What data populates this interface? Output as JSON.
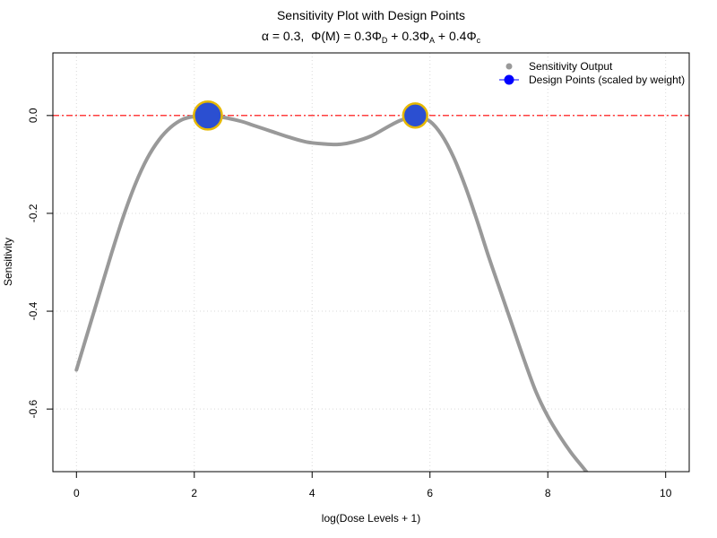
{
  "chart_data": {
    "type": "line",
    "title": "Sensitivity Plot with Design Points",
    "subtitle": {
      "alpha": "α = 0.3,",
      "phi_m": "Φ(M) = 0.3Φ",
      "sub_d": "D",
      "plus_a": " + 0.3Φ",
      "sub_a": "A",
      "plus_c": " + 0.4Φ",
      "sub_c": "c"
    },
    "xlabel": "log(Dose Levels + 1)",
    "ylabel": "Sensitivity",
    "xlim": [
      -0.4,
      10.4
    ],
    "ylim": [
      -0.728,
      0.128
    ],
    "xticks": [
      0,
      2,
      4,
      6,
      8,
      10
    ],
    "xtick_labels": [
      "0",
      "2",
      "4",
      "6",
      "8",
      "10"
    ],
    "yticks": [
      0.0,
      -0.2,
      -0.4,
      -0.6
    ],
    "ytick_labels": [
      "0.0",
      "-0.2",
      "-0.4",
      "-0.6"
    ],
    "grid": true,
    "legend_position": "top-right",
    "reference_line": {
      "y": 0,
      "color": "#ff0000",
      "style": "dashed"
    },
    "series": [
      {
        "name": "Sensitivity Output",
        "color": "#999999",
        "x": [
          0.0,
          0.2,
          0.4,
          0.6,
          0.8,
          1.0,
          1.2,
          1.4,
          1.6,
          1.8,
          2.0,
          2.2,
          2.5,
          2.8,
          3.0,
          3.3,
          3.6,
          3.9,
          4.2,
          4.45,
          4.7,
          5.0,
          5.3,
          5.5,
          5.75,
          6.0,
          6.2,
          6.4,
          6.6,
          6.8,
          7.0,
          7.2,
          7.4,
          7.6,
          7.8,
          8.0,
          8.2,
          8.4,
          8.6,
          8.8,
          8.9
        ],
        "y": [
          -0.52,
          -0.44,
          -0.36,
          -0.28,
          -0.205,
          -0.14,
          -0.088,
          -0.05,
          -0.024,
          -0.008,
          -0.002,
          0.0,
          -0.004,
          -0.012,
          -0.02,
          -0.032,
          -0.044,
          -0.054,
          -0.058,
          -0.059,
          -0.054,
          -0.042,
          -0.022,
          -0.01,
          0.0,
          -0.012,
          -0.04,
          -0.085,
          -0.145,
          -0.215,
          -0.29,
          -0.36,
          -0.43,
          -0.5,
          -0.565,
          -0.615,
          -0.655,
          -0.69,
          -0.72,
          -0.75,
          -0.765
        ]
      }
    ],
    "design_points": {
      "name": "Design Points (scaled by weight)",
      "fill": "#2b4fd1",
      "stroke": "#e6b800",
      "points": [
        {
          "x": 2.23,
          "y": 0.0,
          "weight": 0.6
        },
        {
          "x": 5.75,
          "y": 0.0,
          "weight": 0.4
        }
      ]
    },
    "legend": [
      {
        "label": "Sensitivity Output",
        "symbol": "dot",
        "color": "#999999"
      },
      {
        "label": "Design Points (scaled by weight)",
        "symbol": "dot-line",
        "color": "#0000ff"
      }
    ]
  }
}
